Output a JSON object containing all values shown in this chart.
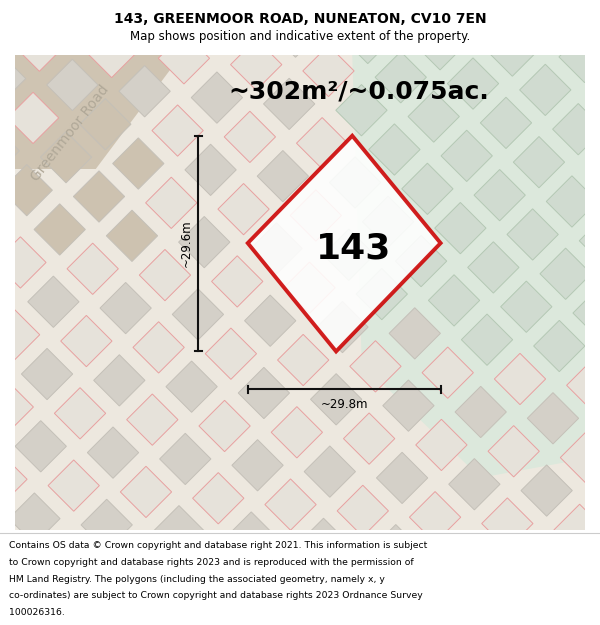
{
  "title_line1": "143, GREENMOOR ROAD, NUNEATON, CV10 7EN",
  "title_line2": "Map shows position and indicative extent of the property.",
  "area_label": "~302m²/~0.075ac.",
  "number_label": "143",
  "dim_height_label": "~29.6m",
  "dim_width_label": "~29.8m",
  "road_label": "Greenmoor Road",
  "footer_lines": [
    "Contains OS data © Crown copyright and database right 2021. This information is subject",
    "to Crown copyright and database rights 2023 and is reproduced with the permission of",
    "HM Land Registry. The polygons (including the associated geometry, namely x, y",
    "co-ordinates) are subject to Crown copyright and database rights 2023 Ordnance Survey",
    "100026316."
  ],
  "bg_color": "#ede8df",
  "green_color": "#dce8dc",
  "road_color": "#cfc4b2",
  "tile_stroke_red": "#e8a0a0",
  "tile_fill_light": "#e6e2da",
  "tile_fill_gray": "#d4d0c8",
  "tile_stroke_gray": "#c4c0b8",
  "green_tile_fill": "#d0dbd0",
  "green_tile_stroke": "#b4c8b4",
  "plot_red": "#cc0000",
  "plot_fill": "#ffffff",
  "dim_color": "#111111",
  "road_text_color": "#b0a898"
}
